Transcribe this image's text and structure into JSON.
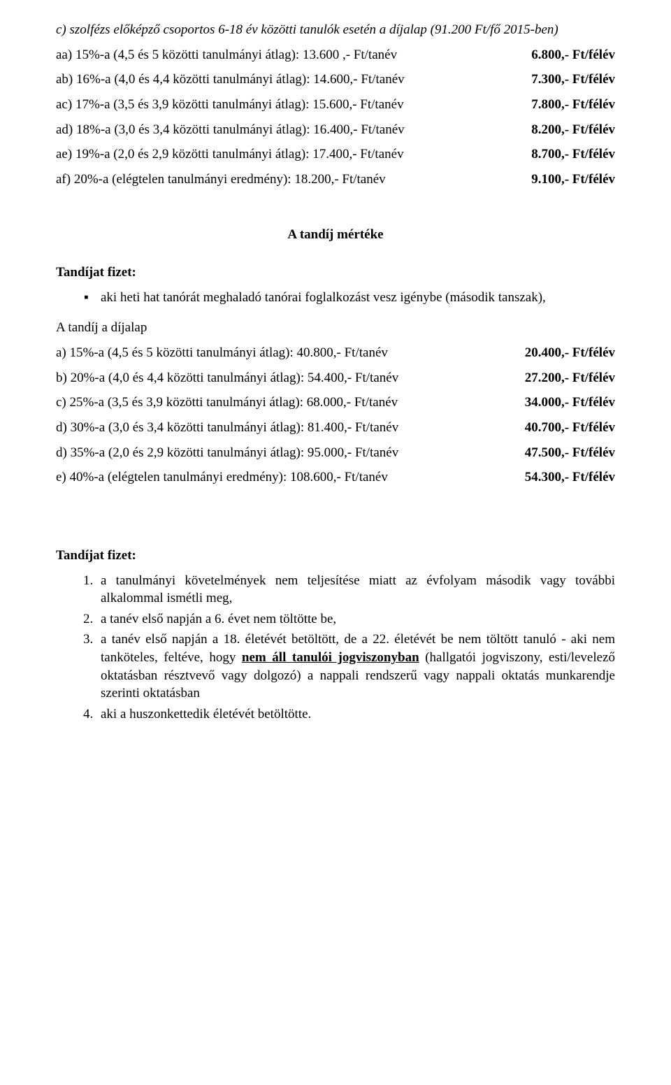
{
  "intro": {
    "italic_line": "c) szolfézs előképző csoportos 6-18 év közötti tanulók esetén a díjalap (91.200 Ft/fő 2015-ben)"
  },
  "feesA": [
    {
      "label": "aa) 15%-a (4,5 és 5 közötti tanulmányi átlag): 13.600 ,- Ft/tanév",
      "value": "6.800,- Ft/félév"
    },
    {
      "label": "ab) 16%-a (4,0 és 4,4 közötti tanulmányi átlag): 14.600,- Ft/tanév",
      "value": "7.300,- Ft/félév"
    },
    {
      "label": "ac) 17%-a (3,5 és 3,9 közötti tanulmányi átlag): 15.600,- Ft/tanév",
      "value": "7.800,- Ft/félév"
    },
    {
      "label": "ad) 18%-a (3,0 és 3,4 közötti tanulmányi átlag): 16.400,- Ft/tanév",
      "value": "8.200,- Ft/félév"
    },
    {
      "label": "ae) 19%-a (2,0 és 2,9 közötti tanulmányi átlag): 17.400,- Ft/tanév",
      "value": "8.700,- Ft/félév"
    },
    {
      "label": "af) 20%-a (elégtelen tanulmányi eredmény): 18.200,- Ft/tanév",
      "value": "9.100,- Ft/félév"
    }
  ],
  "section_title": "A tandíj mértéke",
  "payer_heading": "Tandíjat fizet:",
  "bullet1": "aki heti hat tanórát meghaladó tanórai foglalkozást vesz igénybe (második tanszak),",
  "base_line": "A tandíj a díjalap",
  "feesB": [
    {
      "label": "a) 15%-a (4,5 és 5 közötti tanulmányi átlag): 40.800,- Ft/tanév",
      "value": "20.400,- Ft/félév"
    },
    {
      "label": "b) 20%-a (4,0 és 4,4 közötti tanulmányi átlag): 54.400,- Ft/tanév",
      "value": "27.200,- Ft/félév"
    },
    {
      "label": "c) 25%-a (3,5 és 3,9 közötti tanulmányi átlag): 68.000,- Ft/tanév",
      "value": "34.000,- Ft/félév"
    },
    {
      "label": "d) 30%-a (3,0 és 3,4 közötti tanulmányi átlag): 81.400,- Ft/tanév",
      "value": "40.700,- Ft/félév"
    },
    {
      "label": "d) 35%-a (2,0 és 2,9 közötti tanulmányi átlag): 95.000,- Ft/tanév",
      "value": "47.500,- Ft/félév"
    },
    {
      "label": "e) 40%-a (elégtelen tanulmányi eredmény): 108.600,- Ft/tanév",
      "value": "54.300,- Ft/félév"
    }
  ],
  "numbered": {
    "item1": "a tanulmányi követelmények nem teljesítése miatt az évfolyam második vagy további alkalommal ismétli meg,",
    "item2": "a tanév első napján a 6. évet nem töltötte be,",
    "item3_a": "a tanév első napján a 18. életévét betöltött, de a 22. életévét be nem töltött tanuló - aki nem tanköteles, feltéve, hogy ",
    "item3_u": "nem áll tanulói jogviszonyban",
    "item3_b": " (hallgatói jogviszony, esti/levelező oktatásban résztvevő vagy dolgozó) a nappali rendszerű vagy nappali oktatás munkarendje szerinti oktatásban",
    "item4": "aki a huszonkettedik életévét betöltötte."
  }
}
